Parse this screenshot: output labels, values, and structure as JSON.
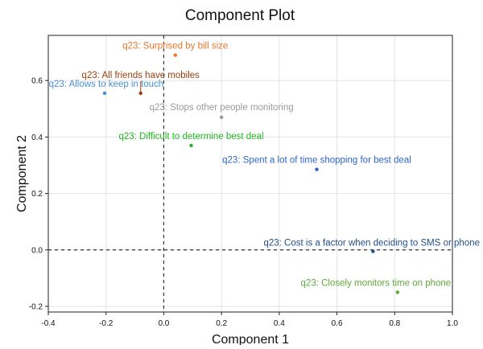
{
  "chart_data": {
    "type": "scatter",
    "title": "Component Plot",
    "xlabel": "Component 1",
    "ylabel": "Component 2",
    "xlim": [
      -0.4,
      1.0
    ],
    "ylim": [
      -0.22,
      0.76
    ],
    "xticks": [
      "-0.4",
      "-0.2",
      "0.0",
      "0.2",
      "0.4",
      "0.6",
      "0.8",
      "1.0"
    ],
    "yticks": [
      "-0.2",
      "0.0",
      "0.2",
      "0.4",
      "0.6"
    ],
    "grid": true,
    "reference_lines": {
      "x": 0,
      "y": 0,
      "style": "dashed"
    },
    "points": [
      {
        "label": "q23: Surprised by bill size",
        "x": 0.04,
        "y": 0.69,
        "color": "#e8772e"
      },
      {
        "label": "q23: All friends have mobiles",
        "x": -0.08,
        "y": 0.555,
        "color": "#9a3e0a"
      },
      {
        "label": "q23: Allows to keep in touch",
        "x": -0.205,
        "y": 0.555,
        "color": "#4a90d0"
      },
      {
        "label": "q23: Stops other people monitoring",
        "x": 0.2,
        "y": 0.47,
        "color": "#9a9a9a"
      },
      {
        "label": "q23: Difficult to determine best deal",
        "x": 0.095,
        "y": 0.37,
        "color": "#22b822"
      },
      {
        "label": "q23: Spent a lot of time shopping for best deal",
        "x": 0.53,
        "y": 0.285,
        "color": "#2e64c8"
      },
      {
        "label": "q23: Cost is a factor when deciding to SMS or phone",
        "x": 0.725,
        "y": -0.005,
        "color": "#1f4e8c"
      },
      {
        "label": "q23: Closely monitors time on phone",
        "x": 0.81,
        "y": -0.15,
        "color": "#5ea83a"
      }
    ]
  }
}
